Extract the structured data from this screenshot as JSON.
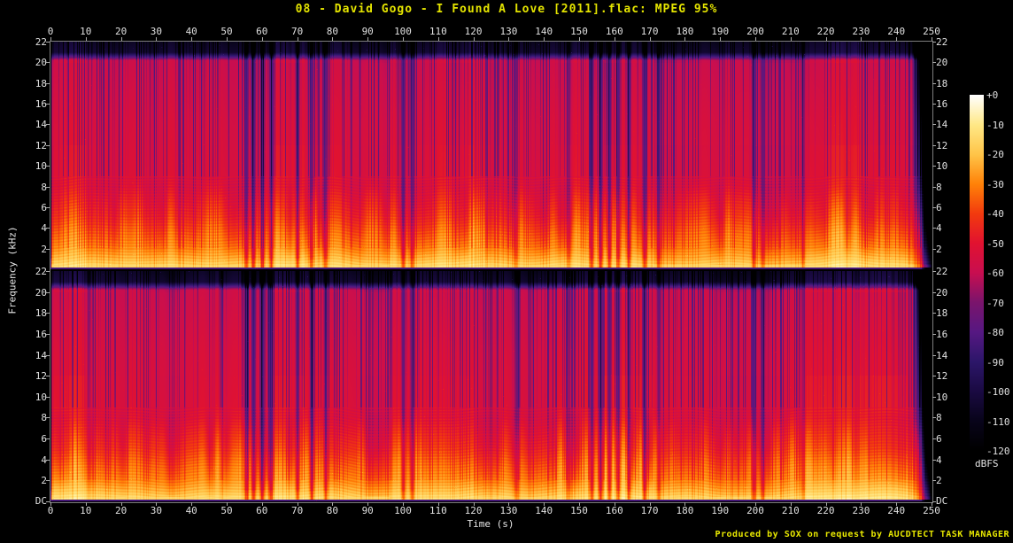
{
  "title": "08 - David Gogo - I Found A Love [2011].flac: MPEG 95%",
  "attribution": "Produced by SOX on request by AUCDTECT TASK MANAGER",
  "axis": {
    "time_label": "Time (s)",
    "freq_label": "Frequency (kHz)",
    "dbfs_label": "dBFS",
    "time_ticks": [
      0,
      10,
      20,
      30,
      40,
      50,
      60,
      70,
      80,
      90,
      100,
      110,
      120,
      130,
      140,
      150,
      160,
      170,
      180,
      190,
      200,
      210,
      220,
      230,
      240,
      250
    ],
    "freq_ticks": [
      22,
      20,
      18,
      16,
      14,
      12,
      10,
      8,
      6,
      4,
      2
    ],
    "dc_label": "DC",
    "colorbar_ticks": [
      "+0",
      "-10",
      "-20",
      "-30",
      "-40",
      "-50",
      "-60",
      "-70",
      "-80",
      "-90",
      "-100",
      "-110",
      "-120"
    ]
  },
  "colors": {
    "background": "#000000",
    "title_text": "#e4e400",
    "attribution_text": "#e8e800",
    "tick_text": "#e0e0e0",
    "axis_line": "#7d7d7d"
  },
  "chart_data": {
    "type": "heatmap",
    "subtype": "audio-spectrogram",
    "tool": "SoX spectrogram",
    "channels": 2,
    "x_axis": {
      "label": "Time (s)",
      "range": [
        0,
        250
      ],
      "tick_step": 10
    },
    "y_axis": {
      "label": "Frequency (kHz)",
      "range_khz": [
        0,
        22
      ],
      "tick_step_khz": 2,
      "dc_at_bottom": true
    },
    "z_axis": {
      "label": "dBFS",
      "range_db": [
        -120,
        0
      ],
      "tick_step_db": 10,
      "legend_position": "right colorbar"
    },
    "duration_s": 244.5,
    "fade_out_end_s": 247.2,
    "lowpass_cutoff_khz": 20.4,
    "freq_db_profile": [
      [
        22,
        -102
      ],
      [
        21,
        -98
      ],
      [
        20.7,
        -82
      ],
      [
        20.2,
        -56
      ],
      [
        14,
        -52
      ],
      [
        8,
        -50
      ],
      [
        5,
        -40
      ],
      [
        3.5,
        -33
      ],
      [
        2,
        -27
      ],
      [
        1,
        -20
      ],
      [
        0.4,
        -14
      ],
      [
        0,
        -11
      ]
    ],
    "silence_gaps": [
      [
        55.5,
        26
      ],
      [
        57.5,
        30
      ],
      [
        60,
        30
      ],
      [
        62.5,
        26
      ],
      [
        70,
        28
      ],
      [
        74,
        26
      ],
      [
        78,
        22
      ],
      [
        100,
        26
      ],
      [
        102.5,
        22
      ],
      [
        132,
        14
      ],
      [
        147,
        13
      ],
      [
        153.5,
        26
      ],
      [
        156,
        30
      ],
      [
        158.5,
        30
      ],
      [
        161,
        28
      ],
      [
        164,
        26
      ],
      [
        168.5,
        28
      ],
      [
        172.5,
        20
      ],
      [
        199.5,
        24
      ],
      [
        202,
        18
      ],
      [
        213.5,
        13
      ]
    ],
    "loud_sections_s": [
      [
        1,
        10
      ],
      [
        63,
        72
      ],
      [
        96,
        120
      ],
      [
        157,
        171
      ],
      [
        214,
        243
      ]
    ],
    "palette_stops": [
      [
        -120,
        0,
        0,
        0
      ],
      [
        -110,
        8,
        4,
        26
      ],
      [
        -100,
        26,
        10,
        66
      ],
      [
        -90,
        44,
        22,
        105
      ],
      [
        -80,
        86,
        24,
        130
      ],
      [
        -70,
        122,
        20,
        108
      ],
      [
        -60,
        200,
        14,
        80
      ],
      [
        -50,
        225,
        18,
        48
      ],
      [
        -40,
        242,
        58,
        14
      ],
      [
        -30,
        255,
        130,
        8
      ],
      [
        -20,
        255,
        196,
        72
      ],
      [
        -10,
        255,
        232,
        134
      ],
      [
        0,
        255,
        255,
        255
      ]
    ]
  }
}
